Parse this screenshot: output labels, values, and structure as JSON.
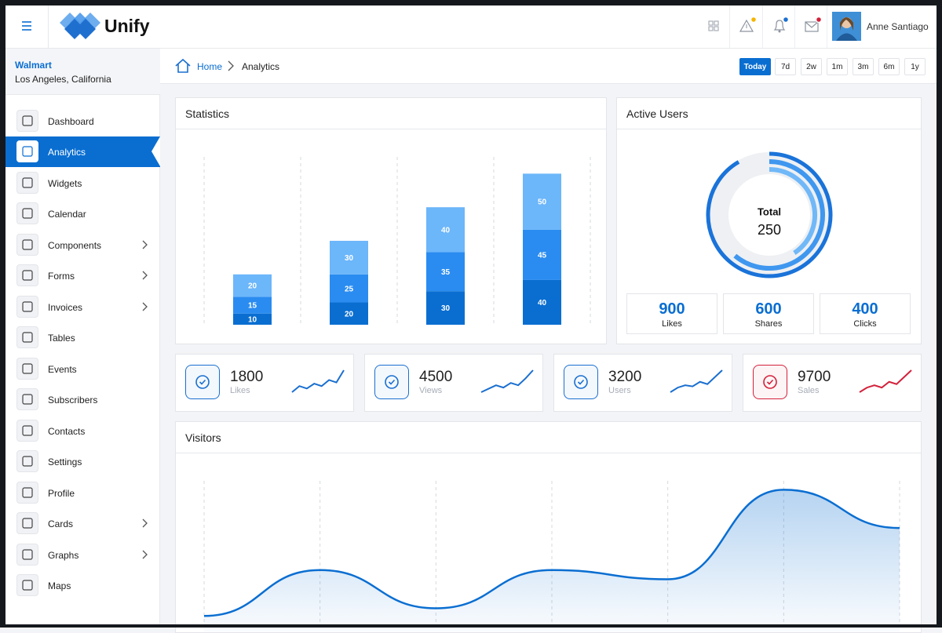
{
  "header": {
    "brand": "Unify",
    "user": "Anne Santiago"
  },
  "sidebar": {
    "org": "Walmart",
    "location": "Los Angeles, California",
    "menu": [
      {
        "label": "Dashboard"
      },
      {
        "label": "Analytics",
        "active": true
      },
      {
        "label": "Widgets"
      },
      {
        "label": "Calendar"
      },
      {
        "label": "Components",
        "submenu": true
      },
      {
        "label": "Forms",
        "submenu": true
      },
      {
        "label": "Invoices",
        "submenu": true
      },
      {
        "label": "Tables"
      },
      {
        "label": "Events"
      },
      {
        "label": "Subscribers"
      },
      {
        "label": "Contacts"
      },
      {
        "label": "Settings"
      },
      {
        "label": "Profile"
      },
      {
        "label": "Cards",
        "submenu": true
      },
      {
        "label": "Graphs",
        "submenu": true
      },
      {
        "label": "Maps"
      }
    ]
  },
  "breadcrumb": [
    "Home",
    "Analytics"
  ],
  "ranges": [
    "Today",
    "7d",
    "2w",
    "1m",
    "3m",
    "6m",
    "1y"
  ],
  "stats": [
    {
      "value": 1800,
      "label": "Likes",
      "color": "#1a6fd0",
      "trend": [
        2,
        3,
        2.6,
        3.4,
        3,
        4,
        3.6,
        5.6
      ]
    },
    {
      "value": 4500,
      "label": "Views",
      "color": "#1a6fd0",
      "trend": [
        2,
        2.6,
        3.2,
        2.8,
        3.6,
        3.2,
        4.4,
        5.8
      ]
    },
    {
      "value": 3200,
      "label": "Users",
      "color": "#1a6fd0",
      "trend": [
        2,
        2.8,
        3.2,
        3,
        3.8,
        3.4,
        4.6,
        5.8
      ]
    },
    {
      "value": 9700,
      "label": "Sales",
      "color": "#d3203a",
      "trend": [
        2,
        2.8,
        3.2,
        2.8,
        3.8,
        3.4,
        4.6,
        5.8
      ]
    }
  ],
  "chart_data": [
    {
      "type": "bar",
      "stacked": true,
      "title": "Statistics",
      "categories": [
        null,
        null,
        null,
        null
      ],
      "series": [
        {
          "color": "#0a6ed1",
          "values": [
            10,
            20,
            30,
            40
          ]
        },
        {
          "color": "#2a8cf0",
          "values": [
            15,
            25,
            35,
            45
          ]
        },
        {
          "color": "#6cb6fa",
          "values": [
            20,
            30,
            40,
            50
          ]
        }
      ],
      "ylim": [
        0,
        150
      ]
    },
    {
      "type": "radial",
      "title": "Active Users",
      "center_label": "Total",
      "total": 250,
      "series": [
        {
          "name": "Likes",
          "value": 900,
          "color": "#1a73d9"
        },
        {
          "name": "Shares",
          "value": 600,
          "color": "#3f97ef"
        },
        {
          "name": "Clicks",
          "value": 400,
          "color": "#70b8f8"
        }
      ]
    },
    {
      "type": "area",
      "title": "Visitors",
      "categories": [
        null,
        null,
        null,
        null,
        null,
        null,
        null
      ],
      "values": [
        10,
        70,
        20,
        70,
        58,
        175,
        125
      ],
      "ylim": [
        0,
        200
      ],
      "color": "#0a6ed1"
    }
  ]
}
